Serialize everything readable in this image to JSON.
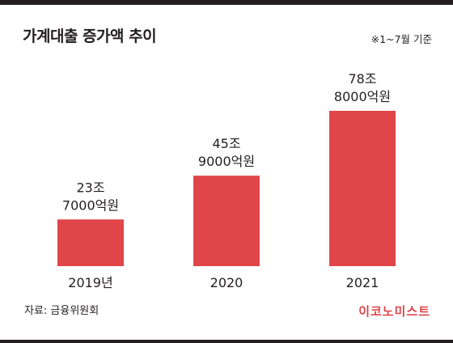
{
  "header": {
    "title": "가계대출 증가액 추이",
    "note": "※1~7월 기준"
  },
  "chart_data": {
    "type": "bar",
    "title": "가계대출 증가액 추이",
    "categories": [
      "2019년",
      "2020",
      "2021"
    ],
    "values": [
      237000,
      459000,
      788000
    ],
    "unit": "억원",
    "data_labels": [
      [
        "23조",
        "7000억원"
      ],
      [
        "45조",
        "9000억원"
      ],
      [
        "78조",
        "8000억원"
      ]
    ],
    "ylim": [
      0,
      788000
    ],
    "grid": false,
    "bar_color": "#e0454a"
  },
  "footer": {
    "source": "자료: 금융위원회",
    "brand": "이코노미스트"
  }
}
